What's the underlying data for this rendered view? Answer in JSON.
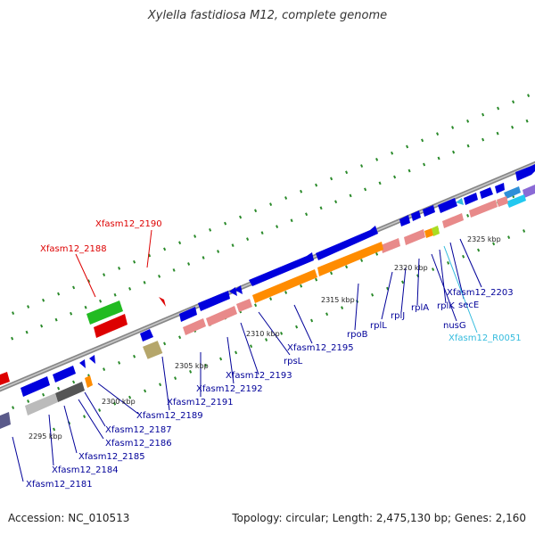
{
  "title": "Xylella fastidiosa M12, complete genome",
  "footer": {
    "accession": "Accession: NC_010513",
    "topology": "Topology: circular; Length: 2,475,130 bp; Genes: 2,160"
  },
  "colors": {
    "backbone": "#999999",
    "forward_cds": "#0000dd",
    "reverse_cds": "#0000dd",
    "long_cds": "#ff8c00",
    "rrna_pink": "#e88a8a",
    "label_cds": "#000099",
    "label_red": "#dd0000",
    "label_cyan": "#33bbdd",
    "green_marker": "#2a8a2a"
  },
  "scale_ticks": [
    "2295 kbp",
    "2300 kbp",
    "2305 kbp",
    "2310 kbp",
    "2315 kbp",
    "2320 kbp",
    "2325 kbp"
  ],
  "labels": [
    {
      "text": "Xfasm12_2190",
      "color": "red"
    },
    {
      "text": "Xfasm12_2188",
      "color": "red"
    },
    {
      "text": "Xfasm12_2203",
      "color": "blue"
    },
    {
      "text": "secE",
      "color": "blue"
    },
    {
      "text": "rplK",
      "color": "blue"
    },
    {
      "text": "nusG",
      "color": "blue"
    },
    {
      "text": "Xfasm12_R0051",
      "color": "cyan"
    },
    {
      "text": "rplA",
      "color": "blue"
    },
    {
      "text": "rplJ",
      "color": "blue"
    },
    {
      "text": "rplL",
      "color": "blue"
    },
    {
      "text": "rpoB",
      "color": "blue"
    },
    {
      "text": "Xfasm12_2195",
      "color": "blue"
    },
    {
      "text": "rpsL",
      "color": "blue"
    },
    {
      "text": "Xfasm12_2193",
      "color": "blue"
    },
    {
      "text": "Xfasm12_2192",
      "color": "blue"
    },
    {
      "text": "Xfasm12_2191",
      "color": "blue"
    },
    {
      "text": "Xfasm12_2189",
      "color": "blue"
    },
    {
      "text": "Xfasm12_2187",
      "color": "blue"
    },
    {
      "text": "Xfasm12_2186",
      "color": "blue"
    },
    {
      "text": "Xfasm12_2185",
      "color": "blue"
    },
    {
      "text": "Xfasm12_2184",
      "color": "blue"
    },
    {
      "text": "Xfasm12_2181",
      "color": "blue"
    }
  ]
}
